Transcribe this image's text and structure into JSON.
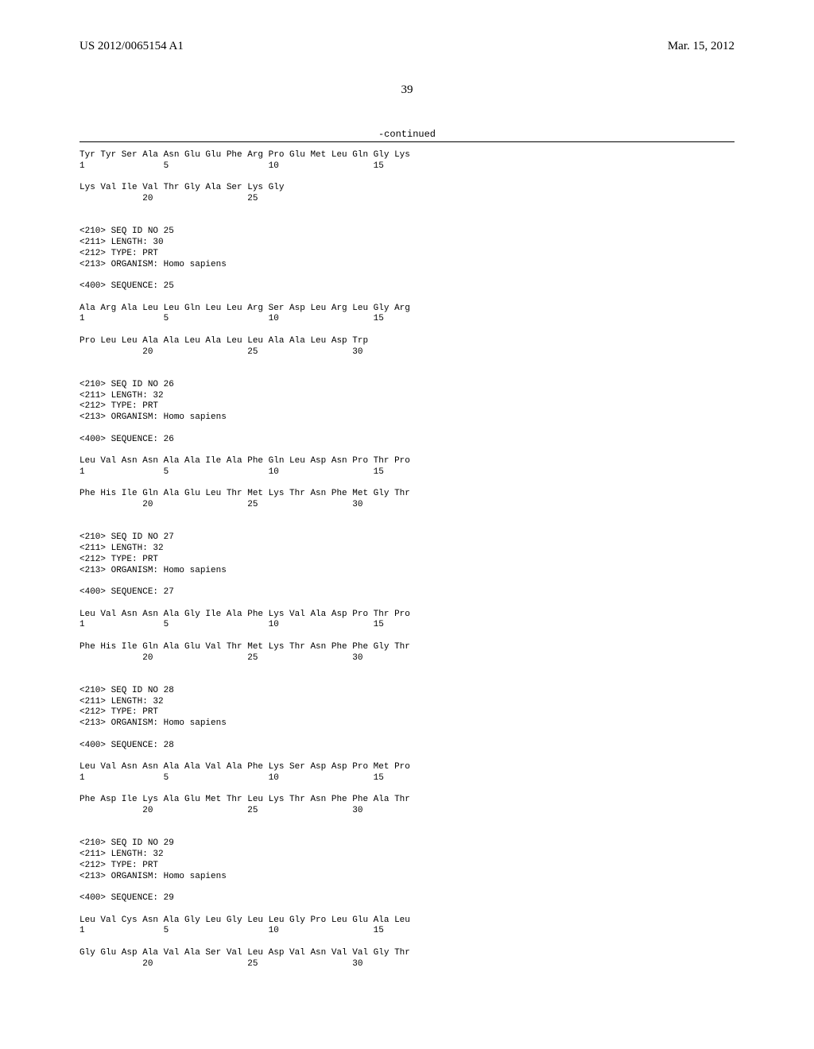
{
  "header": {
    "publication_number": "US 2012/0065154 A1",
    "publication_date": "Mar. 15, 2012"
  },
  "page_number": "39",
  "continued_label": "-continued",
  "sequences": [
    {
      "lines": [
        "Tyr Tyr Ser Ala Asn Glu Glu Phe Arg Pro Glu Met Leu Gln Gly Lys",
        "1               5                   10                  15",
        "",
        "Lys Val Ile Val Thr Gly Ala Ser Lys Gly",
        "            20                  25"
      ]
    },
    {
      "header": [
        "<210> SEQ ID NO 25",
        "<211> LENGTH: 30",
        "<212> TYPE: PRT",
        "<213> ORGANISM: Homo sapiens"
      ],
      "seq_label": "<400> SEQUENCE: 25",
      "lines": [
        "Ala Arg Ala Leu Leu Gln Leu Leu Arg Ser Asp Leu Arg Leu Gly Arg",
        "1               5                   10                  15",
        "",
        "Pro Leu Leu Ala Ala Leu Ala Leu Leu Ala Ala Leu Asp Trp",
        "            20                  25                  30"
      ]
    },
    {
      "header": [
        "<210> SEQ ID NO 26",
        "<211> LENGTH: 32",
        "<212> TYPE: PRT",
        "<213> ORGANISM: Homo sapiens"
      ],
      "seq_label": "<400> SEQUENCE: 26",
      "lines": [
        "Leu Val Asn Asn Ala Ala Ile Ala Phe Gln Leu Asp Asn Pro Thr Pro",
        "1               5                   10                  15",
        "",
        "Phe His Ile Gln Ala Glu Leu Thr Met Lys Thr Asn Phe Met Gly Thr",
        "            20                  25                  30"
      ]
    },
    {
      "header": [
        "<210> SEQ ID NO 27",
        "<211> LENGTH: 32",
        "<212> TYPE: PRT",
        "<213> ORGANISM: Homo sapiens"
      ],
      "seq_label": "<400> SEQUENCE: 27",
      "lines": [
        "Leu Val Asn Asn Ala Gly Ile Ala Phe Lys Val Ala Asp Pro Thr Pro",
        "1               5                   10                  15",
        "",
        "Phe His Ile Gln Ala Glu Val Thr Met Lys Thr Asn Phe Phe Gly Thr",
        "            20                  25                  30"
      ]
    },
    {
      "header": [
        "<210> SEQ ID NO 28",
        "<211> LENGTH: 32",
        "<212> TYPE: PRT",
        "<213> ORGANISM: Homo sapiens"
      ],
      "seq_label": "<400> SEQUENCE: 28",
      "lines": [
        "Leu Val Asn Asn Ala Ala Val Ala Phe Lys Ser Asp Asp Pro Met Pro",
        "1               5                   10                  15",
        "",
        "Phe Asp Ile Lys Ala Glu Met Thr Leu Lys Thr Asn Phe Phe Ala Thr",
        "            20                  25                  30"
      ]
    },
    {
      "header": [
        "<210> SEQ ID NO 29",
        "<211> LENGTH: 32",
        "<212> TYPE: PRT",
        "<213> ORGANISM: Homo sapiens"
      ],
      "seq_label": "<400> SEQUENCE: 29",
      "lines": [
        "Leu Val Cys Asn Ala Gly Leu Gly Leu Leu Gly Pro Leu Glu Ala Leu",
        "1               5                   10                  15",
        "",
        "Gly Glu Asp Ala Val Ala Ser Val Leu Asp Val Asn Val Val Gly Thr",
        "            20                  25                  30"
      ]
    }
  ]
}
